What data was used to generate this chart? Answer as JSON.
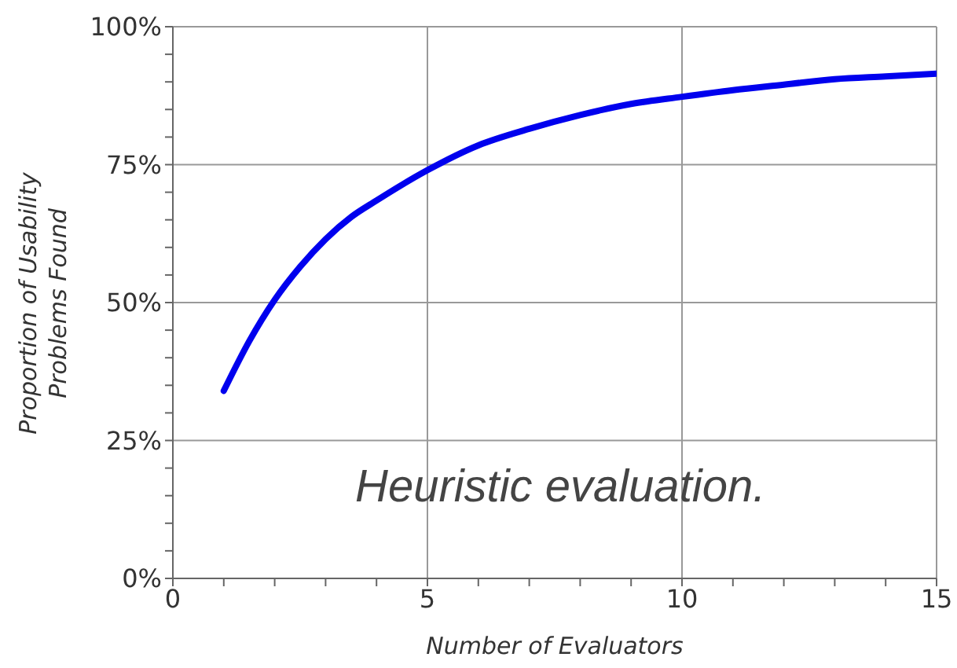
{
  "chart_data": {
    "type": "line",
    "xlabel": "Number of Evaluators",
    "ylabel": "Proportion of Usability Problems Found",
    "x": [
      1,
      1.5,
      2,
      2.5,
      3,
      3.5,
      4,
      5,
      6,
      7,
      8,
      9,
      10,
      11,
      12,
      13,
      14,
      15
    ],
    "series": [
      {
        "color": "#0000ee",
        "values": [
          34,
          43,
          50.5,
          56.5,
          61.5,
          65.5,
          68.5,
          74,
          78.5,
          81.5,
          84,
          86,
          87.3,
          88.5,
          89.5,
          90.5,
          91,
          91.5
        ]
      }
    ],
    "xlim": [
      0,
      15
    ],
    "xticks": [
      0,
      {
        "value": 1,
        "label": null
      },
      {
        "value": 2,
        "label": null
      },
      {
        "value": 3,
        "label": null
      },
      {
        "value": 4,
        "label": null
      },
      5,
      {
        "value": 6,
        "label": null
      },
      {
        "value": 7,
        "label": null
      },
      {
        "value": 8,
        "label": null
      },
      {
        "value": 9,
        "label": null
      },
      10,
      {
        "value": 11,
        "label": null
      },
      {
        "value": 12,
        "label": null
      },
      {
        "value": 13,
        "label": null
      },
      {
        "value": 14,
        "label": null
      },
      15
    ],
    "ylim": [
      0,
      100
    ],
    "yticks": [
      {
        "value": 0,
        "label": "0%"
      },
      {
        "value": 5,
        "label": null
      },
      {
        "value": 10,
        "label": null
      },
      {
        "value": 15,
        "label": null
      },
      {
        "value": 20,
        "label": null
      },
      {
        "value": 25,
        "label": "25%"
      },
      {
        "value": 30,
        "label": null
      },
      {
        "value": 35,
        "label": null
      },
      {
        "value": 40,
        "label": null
      },
      {
        "value": 45,
        "label": null
      },
      {
        "value": 50,
        "label": "50%"
      },
      {
        "value": 55,
        "label": null
      },
      {
        "value": 60,
        "label": null
      },
      {
        "value": 65,
        "label": null
      },
      {
        "value": 70,
        "label": null
      },
      {
        "value": 75,
        "label": "75%"
      },
      {
        "value": 80,
        "label": null
      },
      {
        "value": 85,
        "label": null
      },
      {
        "value": 90,
        "label": null
      },
      {
        "value": 95,
        "label": null
      },
      {
        "value": 100,
        "label": "100%"
      }
    ],
    "grid": true,
    "marker": "none",
    "line_style": "solid",
    "legend": false,
    "annotations": [
      "Heuristic evaluation."
    ]
  }
}
